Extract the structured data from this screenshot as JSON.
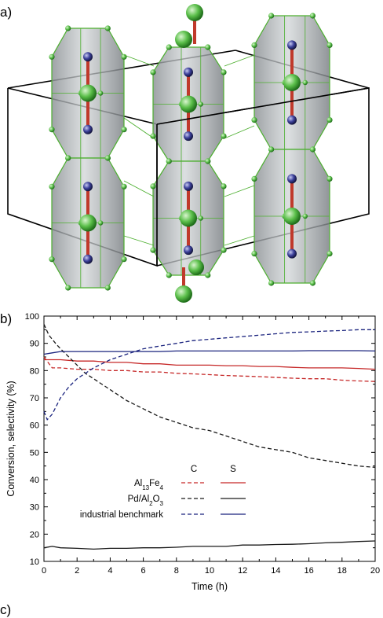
{
  "panels": {
    "a_label": "a)",
    "b_label": "b)",
    "c_label": "c)"
  },
  "colors": {
    "polyhedron_fill": "#9ea3a6",
    "polyhedron_edge": "#4caf2f",
    "al_atom": "#5bbf4a",
    "fe_atom": "#3b3f9a",
    "bond": "#c0392b",
    "al13_series": "#c62828",
    "pd_series": "#000000",
    "industrial_series": "#1a237e"
  },
  "chart_data": {
    "type": "line",
    "xlabel": "Time (h)",
    "ylabel": "Conversion, selectivity (%)",
    "xlim": [
      0,
      20
    ],
    "ylim": [
      10,
      100
    ],
    "xticks": [
      "0",
      "2",
      "4",
      "6",
      "8",
      "10",
      "12",
      "14",
      "16",
      "18",
      "20"
    ],
    "yticks": [
      "10",
      "20",
      "30",
      "40",
      "50",
      "60",
      "70",
      "80",
      "90",
      "100"
    ],
    "grid": false,
    "legend_position": "lower-left",
    "legend_headers": {
      "c": "C",
      "s": "S"
    },
    "legend_entries": [
      {
        "base": "Al",
        "sub1": "13",
        "mid": "Fe",
        "sub2": "4",
        "suffix": ""
      },
      {
        "base": "Pd/Al",
        "sub1": "2",
        "mid": "O",
        "sub2": "3",
        "suffix": ""
      },
      {
        "base": "industrial benchmark",
        "sub1": "",
        "mid": "",
        "sub2": "",
        "suffix": ""
      }
    ],
    "series": [
      {
        "color": "#c62828",
        "dash": true,
        "x": [
          0,
          0.5,
          1,
          2,
          3,
          4,
          5,
          6,
          7,
          8,
          9,
          10,
          11,
          12,
          13,
          14,
          15,
          16,
          17,
          18,
          19,
          20
        ],
        "y": [
          85,
          81,
          81,
          80.5,
          80.5,
          80,
          80,
          79.5,
          79.5,
          79,
          78.8,
          78.5,
          78.2,
          78,
          77.8,
          77.5,
          77.2,
          77,
          77,
          76.5,
          76.2,
          76
        ]
      },
      {
        "color": "#c62828",
        "dash": false,
        "x": [
          0,
          0.5,
          1,
          2,
          3,
          4,
          5,
          6,
          7,
          8,
          9,
          10,
          11,
          12,
          13,
          14,
          15,
          16,
          17,
          18,
          19,
          20
        ],
        "y": [
          84,
          84,
          84,
          83.5,
          83.5,
          83,
          83,
          82.5,
          82.5,
          82,
          82,
          82,
          81.8,
          81.8,
          81.5,
          81.5,
          81.2,
          81,
          81,
          81,
          80.8,
          80.5
        ]
      },
      {
        "color": "#1a1a1a",
        "dash": true,
        "x": [
          0,
          0.3,
          0.7,
          1,
          1.5,
          2,
          2.5,
          3,
          4,
          5,
          6,
          7,
          8,
          9,
          10,
          11,
          12,
          13,
          14,
          15,
          16,
          17,
          18,
          19,
          20
        ],
        "y": [
          97,
          93,
          90,
          88,
          85,
          82,
          79,
          77,
          73,
          69,
          66,
          63,
          61,
          59,
          58,
          56,
          54,
          52,
          51,
          50,
          48,
          47,
          46,
          45,
          44.5
        ]
      },
      {
        "color": "#1a1a1a",
        "dash": false,
        "x": [
          0,
          0.5,
          1,
          2,
          3,
          4,
          5,
          6,
          7,
          8,
          9,
          10,
          11,
          12,
          13,
          14,
          15,
          16,
          17,
          18,
          19,
          20
        ],
        "y": [
          15,
          15.5,
          15,
          14.8,
          14.5,
          14.8,
          14.8,
          15,
          15,
          15.2,
          15.5,
          15.5,
          15.5,
          16,
          16,
          16.2,
          16.3,
          16.5,
          16.8,
          17,
          17.3,
          17.5
        ]
      },
      {
        "color": "#1a237e",
        "dash": true,
        "x": [
          0,
          0.2,
          0.5,
          1,
          1.5,
          2,
          3,
          4,
          5,
          6,
          7,
          8,
          9,
          10,
          11,
          12,
          13,
          14,
          15,
          16,
          17,
          18,
          19,
          20
        ],
        "y": [
          65,
          62,
          64,
          70,
          74,
          77,
          81,
          84,
          86,
          88,
          89,
          90,
          91,
          91.5,
          92,
          92.5,
          93,
          93.5,
          94,
          94.2,
          94.5,
          94.7,
          95,
          95
        ]
      },
      {
        "color": "#1a237e",
        "dash": false,
        "x": [
          0,
          0.5,
          1,
          2,
          3,
          4,
          5,
          6,
          7,
          8,
          9,
          10,
          11,
          12,
          13,
          14,
          15,
          16,
          17,
          18,
          19,
          20
        ],
        "y": [
          86,
          86.5,
          87,
          87,
          87,
          87,
          87,
          87,
          87,
          87.2,
          87.2,
          87.2,
          87.2,
          87.2,
          87.2,
          87.2,
          87.2,
          87.3,
          87.3,
          87.3,
          87.3,
          87.2
        ]
      }
    ]
  }
}
